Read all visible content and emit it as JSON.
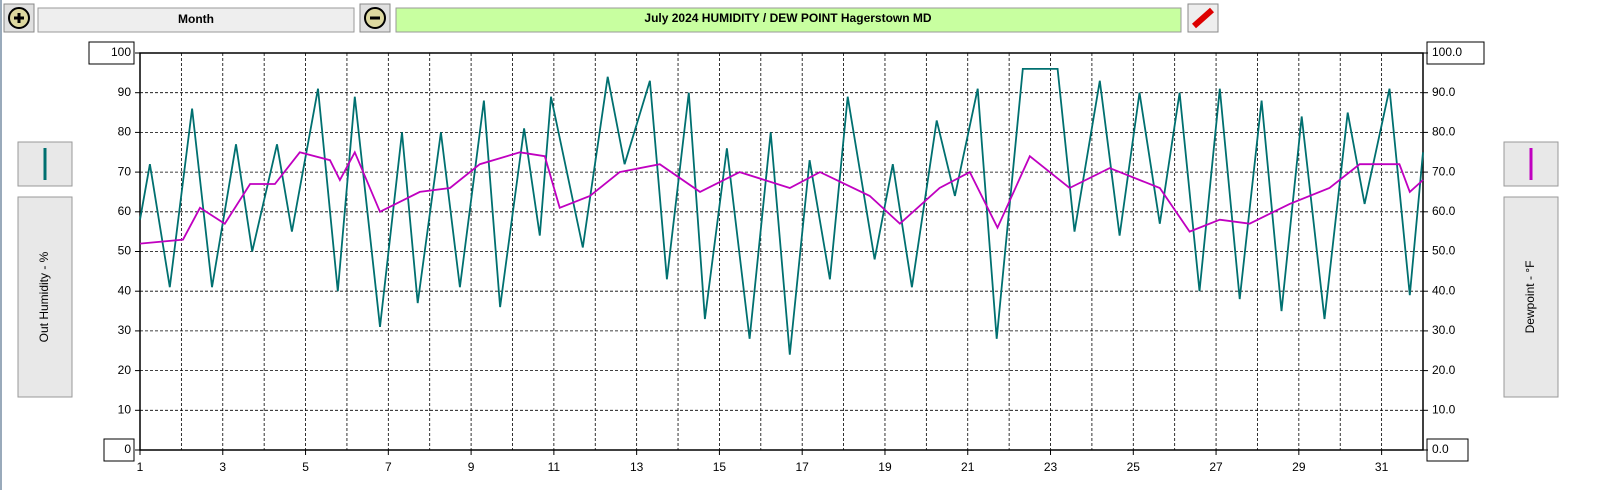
{
  "chart_data": {
    "type": "line",
    "title": "July  2024  HUMIDITY / DEW POINT  Hagerstown MD",
    "period": "Month",
    "xlim": [
      1,
      32
    ],
    "xticks": [
      1,
      3,
      5,
      7,
      9,
      11,
      13,
      15,
      17,
      19,
      21,
      23,
      25,
      27,
      29,
      31
    ],
    "xminor": [
      2,
      4,
      6,
      8,
      10,
      12,
      14,
      16,
      18,
      20,
      22,
      24,
      26,
      28,
      30,
      32
    ],
    "ylim": [
      0,
      100
    ],
    "yticks": [
      0,
      10,
      20,
      30,
      40,
      50,
      60,
      70,
      80,
      90,
      100
    ],
    "y2lim": [
      0,
      100
    ],
    "y2ticks": [
      {
        "value": 0,
        "label": "0.0"
      },
      {
        "value": 10,
        "label": "10.0"
      },
      {
        "value": 20,
        "label": "20.0"
      },
      {
        "value": 30,
        "label": "30.0"
      },
      {
        "value": 40,
        "label": "40.0"
      },
      {
        "value": 50,
        "label": "50.0"
      },
      {
        "value": 60,
        "label": "60.0"
      },
      {
        "value": 70,
        "label": "70.0"
      },
      {
        "value": 80,
        "label": "80.0"
      },
      {
        "value": 90,
        "label": "90.0"
      },
      {
        "value": 100,
        "label": "100.0"
      }
    ],
    "grid": true,
    "series": [
      {
        "name": "Out Humidity - %",
        "color": "#007070",
        "x": [
          1.0,
          1.24,
          1.72,
          2.26,
          2.74,
          3.32,
          3.71,
          4.31,
          4.67,
          5.3,
          5.78,
          6.19,
          6.8,
          7.33,
          7.71,
          8.27,
          8.73,
          9.31,
          9.7,
          10.28,
          10.66,
          10.93,
          11.7,
          12.3,
          12.71,
          13.32,
          13.73,
          14.26,
          14.65,
          15.18,
          15.73,
          16.24,
          16.7,
          17.18,
          17.67,
          18.1,
          18.75,
          19.19,
          19.65,
          20.25,
          20.69,
          21.24,
          21.7,
          22.33,
          23.17,
          23.58,
          24.19,
          24.67,
          25.15,
          25.64,
          26.12,
          26.6,
          27.09,
          27.57,
          28.1,
          28.58,
          29.07,
          29.62,
          30.18,
          30.59,
          31.19,
          31.68,
          32.0
        ],
        "values": [
          58,
          72,
          41,
          86,
          41,
          77,
          50,
          77,
          55,
          91,
          40,
          89,
          31,
          80,
          37,
          80,
          41,
          88,
          36,
          81,
          54,
          89,
          51,
          94,
          72,
          93,
          43,
          90,
          33,
          76,
          28,
          80,
          24,
          73,
          43,
          89,
          48,
          72,
          41,
          83,
          64,
          91,
          28,
          96,
          96,
          55,
          93,
          54,
          90,
          57,
          90,
          40,
          91,
          38,
          88,
          35,
          84,
          33,
          85,
          62,
          91,
          39,
          75
        ]
      },
      {
        "name": "Dewpoint - °F",
        "color": "#c000c0",
        "axis": "y2",
        "x": [
          1.0,
          2.04,
          2.45,
          3.05,
          3.66,
          4.26,
          4.86,
          5.59,
          5.83,
          6.19,
          6.8,
          7.76,
          8.49,
          9.21,
          10.18,
          10.78,
          11.14,
          11.87,
          12.59,
          13.56,
          14.53,
          15.49,
          16.7,
          17.43,
          18.63,
          19.36,
          20.32,
          21.05,
          21.72,
          22.5,
          23.46,
          24.43,
          25.64,
          26.36,
          27.09,
          27.81,
          28.78,
          29.74,
          30.47,
          31.43,
          31.68,
          32.0
        ],
        "values": [
          52,
          53,
          61,
          57,
          67,
          67,
          75,
          73,
          68,
          75,
          60,
          65,
          66,
          72,
          75,
          74,
          61,
          64,
          70,
          72,
          65,
          70,
          66,
          70,
          64,
          57,
          66,
          70,
          56,
          74,
          66,
          71,
          66,
          55,
          58,
          57,
          62,
          66,
          72,
          72,
          65,
          68
        ]
      }
    ]
  }
}
